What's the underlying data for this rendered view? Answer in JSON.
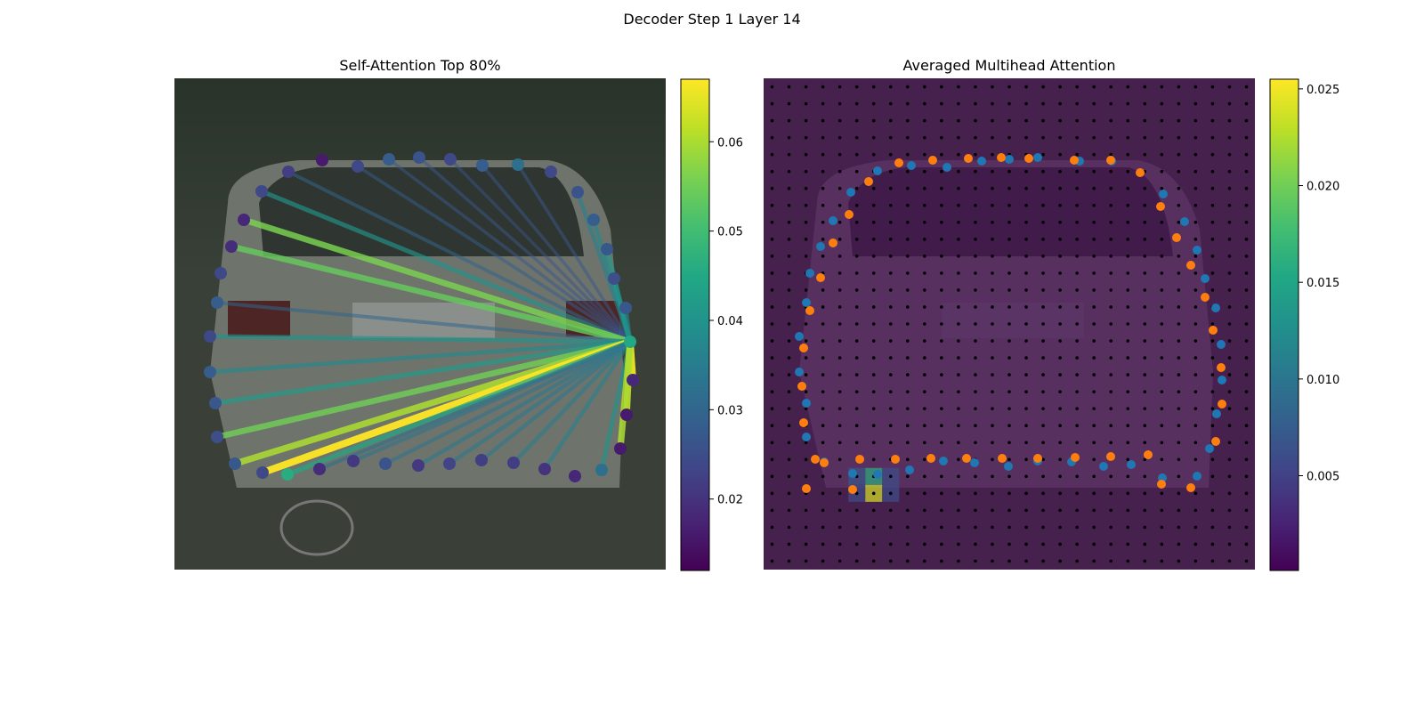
{
  "figure": {
    "suptitle": "Decoder Step 1 Layer 14"
  },
  "chart_data": [
    {
      "type": "scatter",
      "title": "Self-Attention Top 80%",
      "description_of_lines": "attention edges from query point to keypoints, weighted",
      "image_size": [
        552,
        552
      ],
      "query_point": [
        512,
        296
      ],
      "colorbar": {
        "min": 0.012,
        "max": 0.067,
        "ticks": [
          0.02,
          0.03,
          0.04,
          0.05,
          0.06
        ],
        "tick_labels": [
          "0.02",
          "0.03",
          "0.04",
          "0.05",
          "0.06"
        ],
        "colormap": "viridis"
      },
      "points": [
        {
          "x": 128,
          "y": 105,
          "v": 0.022
        },
        {
          "x": 166,
          "y": 92,
          "v": 0.016
        },
        {
          "x": 206,
          "y": 99,
          "v": 0.024
        },
        {
          "x": 241,
          "y": 91,
          "v": 0.028
        },
        {
          "x": 275,
          "y": 89,
          "v": 0.026
        },
        {
          "x": 310,
          "y": 91,
          "v": 0.024
        },
        {
          "x": 346,
          "y": 98,
          "v": 0.028
        },
        {
          "x": 386,
          "y": 97,
          "v": 0.032
        },
        {
          "x": 423,
          "y": 105,
          "v": 0.024
        },
        {
          "x": 453,
          "y": 128,
          "v": 0.026
        },
        {
          "x": 471,
          "y": 159,
          "v": 0.028
        },
        {
          "x": 486,
          "y": 192,
          "v": 0.027
        },
        {
          "x": 494,
          "y": 225,
          "v": 0.025
        },
        {
          "x": 507,
          "y": 258,
          "v": 0.027
        },
        {
          "x": 515,
          "y": 339,
          "v": 0.018
        },
        {
          "x": 508,
          "y": 378,
          "v": 0.016
        },
        {
          "x": 501,
          "y": 416,
          "v": 0.016
        },
        {
          "x": 480,
          "y": 440,
          "v": 0.032
        },
        {
          "x": 450,
          "y": 447,
          "v": 0.018
        },
        {
          "x": 416,
          "y": 439,
          "v": 0.02
        },
        {
          "x": 381,
          "y": 432,
          "v": 0.022
        },
        {
          "x": 345,
          "y": 429,
          "v": 0.022
        },
        {
          "x": 309,
          "y": 433,
          "v": 0.023
        },
        {
          "x": 274,
          "y": 435,
          "v": 0.021
        },
        {
          "x": 237,
          "y": 433,
          "v": 0.026
        },
        {
          "x": 201,
          "y": 430,
          "v": 0.021
        },
        {
          "x": 163,
          "y": 439,
          "v": 0.019
        },
        {
          "x": 127,
          "y": 445,
          "v": 0.046
        },
        {
          "x": 99,
          "y": 443,
          "v": 0.024
        },
        {
          "x": 68,
          "y": 433,
          "v": 0.027
        },
        {
          "x": 48,
          "y": 403,
          "v": 0.025
        },
        {
          "x": 46,
          "y": 365,
          "v": 0.027
        },
        {
          "x": 40,
          "y": 330,
          "v": 0.028
        },
        {
          "x": 40,
          "y": 290,
          "v": 0.024
        },
        {
          "x": 48,
          "y": 252,
          "v": 0.028
        },
        {
          "x": 52,
          "y": 219,
          "v": 0.024
        },
        {
          "x": 64,
          "y": 189,
          "v": 0.019
        },
        {
          "x": 78,
          "y": 159,
          "v": 0.018
        },
        {
          "x": 98,
          "y": 127,
          "v": 0.024
        }
      ],
      "edges": [
        {
          "to": [
            98,
            127
          ],
          "v": 0.04
        },
        {
          "to": [
            128,
            105
          ],
          "v": 0.03
        },
        {
          "to": [
            206,
            99
          ],
          "v": 0.028
        },
        {
          "to": [
            241,
            91
          ],
          "v": 0.027
        },
        {
          "to": [
            275,
            89
          ],
          "v": 0.027
        },
        {
          "to": [
            310,
            91
          ],
          "v": 0.026
        },
        {
          "to": [
            346,
            98
          ],
          "v": 0.027
        },
        {
          "to": [
            386,
            97
          ],
          "v": 0.027
        },
        {
          "to": [
            453,
            128
          ],
          "v": 0.036
        },
        {
          "to": [
            471,
            159
          ],
          "v": 0.038
        },
        {
          "to": [
            486,
            192
          ],
          "v": 0.042
        },
        {
          "to": [
            494,
            225
          ],
          "v": 0.04
        },
        {
          "to": [
            507,
            258
          ],
          "v": 0.038
        },
        {
          "to": [
            78,
            159
          ],
          "v": 0.056
        },
        {
          "to": [
            64,
            189
          ],
          "v": 0.054
        },
        {
          "to": [
            48,
            252
          ],
          "v": 0.03
        },
        {
          "to": [
            40,
            290
          ],
          "v": 0.04
        },
        {
          "to": [
            40,
            330
          ],
          "v": 0.038
        },
        {
          "to": [
            46,
            365
          ],
          "v": 0.042
        },
        {
          "to": [
            48,
            403
          ],
          "v": 0.055
        },
        {
          "to": [
            68,
            433
          ],
          "v": 0.06
        },
        {
          "to": [
            99,
            443
          ],
          "v": 0.067
        },
        {
          "to": [
            127,
            445
          ],
          "v": 0.045
        },
        {
          "to": [
            163,
            439
          ],
          "v": 0.032
        },
        {
          "to": [
            201,
            430
          ],
          "v": 0.033
        },
        {
          "to": [
            237,
            433
          ],
          "v": 0.033
        },
        {
          "to": [
            274,
            435
          ],
          "v": 0.034
        },
        {
          "to": [
            309,
            433
          ],
          "v": 0.034
        },
        {
          "to": [
            345,
            429
          ],
          "v": 0.034
        },
        {
          "to": [
            381,
            432
          ],
          "v": 0.035
        },
        {
          "to": [
            416,
            439
          ],
          "v": 0.036
        },
        {
          "to": [
            480,
            440
          ],
          "v": 0.04
        },
        {
          "to": [
            515,
            339
          ],
          "v": 0.066
        },
        {
          "to": [
            508,
            378
          ],
          "v": 0.062
        },
        {
          "to": [
            501,
            416
          ],
          "v": 0.06
        }
      ]
    },
    {
      "type": "heatmap",
      "title": "Averaged Multihead Attention",
      "grid": {
        "rows": 29,
        "cols": 29
      },
      "colorbar": {
        "min": 0.0001,
        "max": 0.0255,
        "ticks": [
          0.005,
          0.01,
          0.015,
          0.02,
          0.025
        ],
        "tick_labels": [
          "0.005",
          "0.010",
          "0.015",
          "0.020",
          "0.025"
        ],
        "colormap": "viridis"
      },
      "hot_cells": [
        {
          "row": 23,
          "col": 6,
          "v": 0.016
        },
        {
          "row": 24,
          "col": 6,
          "v": 0.024
        },
        {
          "row": 23,
          "col": 5,
          "v": 0.007
        },
        {
          "row": 24,
          "col": 5,
          "v": 0.006
        },
        {
          "row": 23,
          "col": 7,
          "v": 0.006
        },
        {
          "row": 24,
          "col": 7,
          "v": 0.006
        }
      ],
      "series": [
        {
          "name": "blue",
          "color": "#1f77b4",
          "points": [
            [
              128,
              104
            ],
            [
              166,
              98
            ],
            [
              206,
              100
            ],
            [
              245,
              93
            ],
            [
              276,
              91
            ],
            [
              308,
              89
            ],
            [
              355,
              93
            ],
            [
              391,
              93
            ],
            [
              449,
              130
            ],
            [
              473,
              161
            ],
            [
              487,
              193
            ],
            [
              496,
              225
            ],
            [
              508,
              258
            ],
            [
              514,
              299
            ],
            [
              515,
              339
            ],
            [
              509,
              377
            ],
            [
              501,
              416
            ],
            [
              487,
              447
            ],
            [
              448,
              449
            ],
            [
              413,
              434
            ],
            [
              382,
              436
            ],
            [
              346,
              431
            ],
            [
              308,
              430
            ],
            [
              275,
              436
            ],
            [
              237,
              432
            ],
            [
              202,
              430
            ],
            [
              164,
              440
            ],
            [
              128,
              445
            ],
            [
              100,
              444
            ],
            [
              68,
              431
            ],
            [
              48,
              403
            ],
            [
              48,
              365
            ],
            [
              40,
              330
            ],
            [
              40,
              290
            ],
            [
              48,
              252
            ],
            [
              52,
              219
            ],
            [
              64,
              189
            ],
            [
              78,
              160
            ],
            [
              98,
              128
            ]
          ]
        },
        {
          "name": "orange",
          "color": "#ff7f0e",
          "points": [
            [
              152,
              95
            ],
            [
              190,
              92
            ],
            [
              230,
              90
            ],
            [
              267,
              89
            ],
            [
              298,
              90
            ],
            [
              349,
              92
            ],
            [
              390,
              92
            ],
            [
              423,
              106
            ],
            [
              446,
              144
            ],
            [
              464,
              179
            ],
            [
              480,
              210
            ],
            [
              496,
              246
            ],
            [
              505,
              283
            ],
            [
              514,
              325
            ],
            [
              515,
              366
            ],
            [
              508,
              408
            ],
            [
              480,
              460
            ],
            [
              447,
              456
            ],
            [
              432,
              423
            ],
            [
              390,
              425
            ],
            [
              350,
              426
            ],
            [
              308,
              427
            ],
            [
              268,
              427
            ],
            [
              228,
              427
            ],
            [
              188,
              427
            ],
            [
              148,
              428
            ],
            [
              108,
              428
            ],
            [
              68,
              432
            ],
            [
              48,
              461
            ],
            [
              58,
              428
            ],
            [
              45,
              387
            ],
            [
              43,
              346
            ],
            [
              45,
              303
            ],
            [
              52,
              261
            ],
            [
              64,
              224
            ],
            [
              78,
              185
            ],
            [
              96,
              153
            ],
            [
              118,
              116
            ],
            [
              100,
              462
            ]
          ]
        }
      ]
    }
  ]
}
